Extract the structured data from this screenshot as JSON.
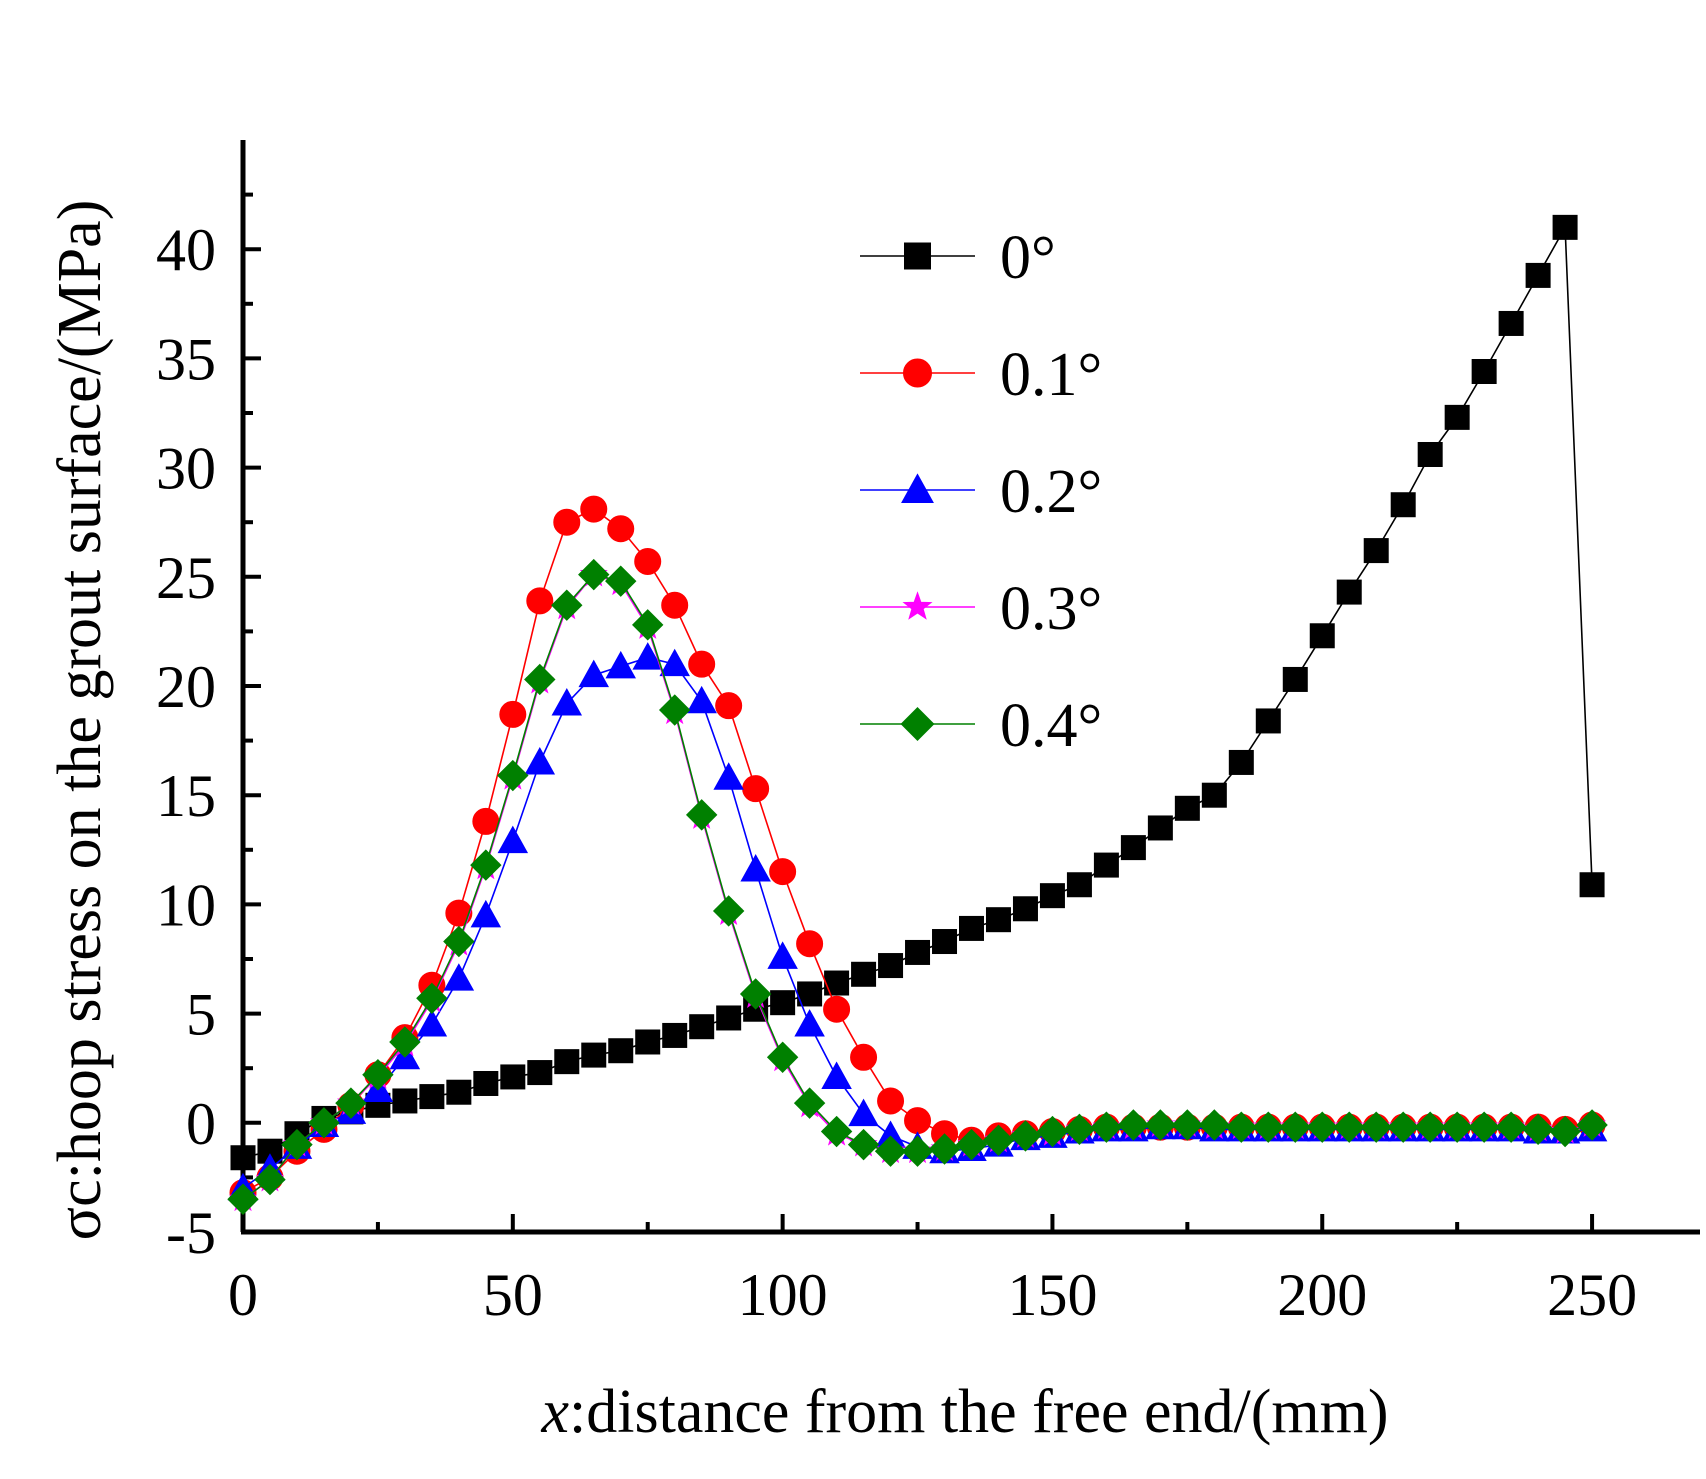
{
  "chart_data": {
    "type": "line",
    "xlabel_var": "x",
    "xlabel_rest": ":distance from the free end/(mm)",
    "ylabel_main": "σc",
    "ylabel_rest": ":hoop stress on the grout surface/(MPa)",
    "xlim": [
      0,
      270
    ],
    "ylim": [
      -5,
      45
    ],
    "xticks": [
      0,
      50,
      100,
      150,
      200,
      250
    ],
    "yticks": [
      -5,
      0,
      5,
      10,
      15,
      20,
      25,
      30,
      35,
      40
    ],
    "legend_position": "top-center",
    "x": [
      0,
      5,
      10,
      15,
      20,
      25,
      30,
      35,
      40,
      45,
      50,
      55,
      60,
      65,
      70,
      75,
      80,
      85,
      90,
      95,
      100,
      105,
      110,
      115,
      120,
      125,
      130,
      135,
      140,
      145,
      150,
      155,
      160,
      165,
      170,
      175,
      180,
      185,
      190,
      195,
      200,
      205,
      210,
      215,
      220,
      225,
      230,
      235,
      240,
      245,
      250
    ],
    "series": [
      {
        "name": "0°",
        "color": "#000000",
        "marker": "square",
        "x": [
          0,
          5,
          10,
          15,
          20,
          25,
          30,
          35,
          40,
          45,
          50,
          55,
          60,
          65,
          70,
          75,
          80,
          85,
          90,
          95,
          100,
          105,
          110,
          115,
          120,
          125,
          130,
          135,
          140,
          145,
          150,
          155,
          160,
          165,
          170,
          175,
          180,
          185,
          190,
          195,
          200,
          205,
          210,
          215,
          220,
          225,
          230,
          235,
          240,
          245,
          250
        ],
        "values": [
          -1.6,
          -1.3,
          -0.5,
          0.2,
          0.5,
          0.8,
          1.0,
          1.2,
          1.4,
          1.8,
          2.1,
          2.3,
          2.8,
          3.1,
          3.3,
          3.7,
          4.0,
          4.4,
          4.8,
          5.2,
          5.5,
          5.9,
          6.4,
          6.8,
          7.2,
          7.8,
          8.3,
          8.9,
          9.3,
          9.8,
          10.4,
          10.9,
          11.8,
          12.6,
          13.5,
          14.4,
          15.0,
          16.5,
          18.4,
          20.3,
          22.3,
          24.3,
          26.2,
          28.3,
          30.6,
          32.3,
          34.4,
          36.6,
          38.8,
          41.0,
          10.9
        ]
      },
      {
        "name": "0.1°",
        "color": "#ff0000",
        "marker": "circle",
        "x": [
          0,
          5,
          10,
          15,
          20,
          25,
          30,
          35,
          40,
          45,
          50,
          55,
          60,
          65,
          70,
          75,
          80,
          85,
          90,
          95,
          100,
          105,
          110,
          115,
          120,
          125,
          130,
          135,
          140,
          145,
          150,
          155,
          160,
          165,
          170,
          175,
          180,
          185,
          190,
          195,
          200,
          205,
          210,
          215,
          220,
          225,
          230,
          235,
          240,
          245,
          250
        ],
        "values": [
          -3.2,
          -2.5,
          -1.3,
          -0.3,
          0.8,
          2.2,
          3.9,
          6.3,
          9.6,
          13.8,
          18.7,
          23.9,
          27.5,
          28.1,
          27.2,
          25.7,
          23.7,
          21.0,
          19.1,
          15.3,
          11.5,
          8.2,
          5.2,
          3.0,
          1.0,
          0.1,
          -0.5,
          -0.8,
          -0.6,
          -0.5,
          -0.4,
          -0.3,
          -0.2,
          -0.2,
          -0.2,
          -0.2,
          -0.2,
          -0.2,
          -0.2,
          -0.2,
          -0.2,
          -0.2,
          -0.2,
          -0.2,
          -0.2,
          -0.2,
          -0.2,
          -0.2,
          -0.2,
          -0.3,
          -0.1
        ]
      },
      {
        "name": "0.2°",
        "color": "#0000ff",
        "marker": "triangle",
        "x": [
          0,
          5,
          10,
          15,
          20,
          25,
          30,
          35,
          40,
          45,
          50,
          55,
          60,
          65,
          70,
          75,
          80,
          85,
          90,
          95,
          100,
          105,
          110,
          115,
          120,
          125,
          130,
          135,
          140,
          145,
          150,
          155,
          160,
          165,
          170,
          175,
          180,
          185,
          190,
          195,
          200,
          205,
          210,
          215,
          220,
          225,
          230,
          235,
          240,
          245,
          250
        ],
        "values": [
          -3.0,
          -2.1,
          -1.1,
          -0.1,
          0.5,
          1.5,
          3.0,
          4.5,
          6.6,
          9.5,
          12.9,
          16.5,
          19.2,
          20.5,
          20.9,
          21.3,
          21.0,
          19.3,
          15.8,
          11.6,
          7.6,
          4.5,
          2.1,
          0.4,
          -0.6,
          -1.1,
          -1.3,
          -1.2,
          -1.0,
          -0.7,
          -0.6,
          -0.4,
          -0.3,
          -0.3,
          -0.2,
          -0.2,
          -0.3,
          -0.3,
          -0.3,
          -0.3,
          -0.3,
          -0.3,
          -0.3,
          -0.3,
          -0.3,
          -0.3,
          -0.3,
          -0.3,
          -0.4,
          -0.4,
          -0.3
        ]
      },
      {
        "name": "0.3°",
        "color": "#ff00ff",
        "marker": "star",
        "x": [
          0,
          5,
          10,
          15,
          20,
          25,
          30,
          35,
          40,
          45,
          50,
          55,
          60,
          65,
          70,
          75,
          80,
          85,
          90,
          95,
          100,
          105,
          110,
          115,
          120,
          125,
          130,
          135,
          140,
          145,
          150,
          155,
          160,
          165,
          170,
          175,
          180,
          185,
          190,
          195,
          200,
          205,
          210,
          215,
          220,
          225,
          230,
          235,
          240,
          245,
          250
        ],
        "values": [
          -3.5,
          -2.6,
          -1.0,
          0.0,
          0.9,
          2.1,
          3.6,
          5.6,
          8.2,
          11.7,
          15.8,
          20.2,
          23.6,
          25.1,
          24.7,
          22.7,
          18.8,
          14.0,
          9.6,
          5.8,
          2.9,
          0.8,
          -0.5,
          -1.0,
          -1.3,
          -1.3,
          -1.2,
          -1.0,
          -0.8,
          -0.6,
          -0.5,
          -0.3,
          -0.2,
          -0.2,
          -0.1,
          -0.1,
          -0.2,
          -0.2,
          -0.2,
          -0.2,
          -0.2,
          -0.2,
          -0.2,
          -0.2,
          -0.2,
          -0.2,
          -0.2,
          -0.2,
          -0.3,
          -0.4,
          -0.1
        ]
      },
      {
        "name": "0.4°",
        "color": "#008000",
        "marker": "diamond",
        "x": [
          0,
          5,
          10,
          15,
          20,
          25,
          30,
          35,
          40,
          45,
          50,
          55,
          60,
          65,
          70,
          75,
          80,
          85,
          90,
          95,
          100,
          105,
          110,
          115,
          120,
          125,
          130,
          135,
          140,
          145,
          150,
          155,
          160,
          165,
          170,
          175,
          180,
          185,
          190,
          195,
          200,
          205,
          210,
          215,
          220,
          225,
          230,
          235,
          240,
          245,
          250
        ],
        "values": [
          -3.5,
          -2.6,
          -1.0,
          0.0,
          0.9,
          2.2,
          3.7,
          5.7,
          8.3,
          11.8,
          15.9,
          20.3,
          23.7,
          25.1,
          24.8,
          22.8,
          18.9,
          14.1,
          9.7,
          5.9,
          3.0,
          0.9,
          -0.4,
          -1.0,
          -1.3,
          -1.3,
          -1.2,
          -1.0,
          -0.8,
          -0.6,
          -0.4,
          -0.3,
          -0.2,
          -0.1,
          -0.1,
          -0.1,
          -0.1,
          -0.2,
          -0.2,
          -0.2,
          -0.2,
          -0.2,
          -0.2,
          -0.2,
          -0.2,
          -0.2,
          -0.2,
          -0.2,
          -0.3,
          -0.4,
          -0.1
        ]
      }
    ]
  }
}
